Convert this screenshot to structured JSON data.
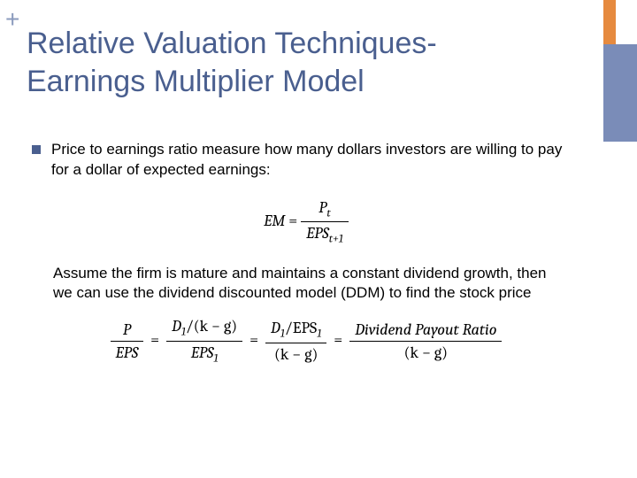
{
  "colors": {
    "plus": "#8b9bbd",
    "accent_orange": "#e68a3f",
    "accent_blue": "#7a8cb8",
    "title": "#4a5f8f",
    "bullet_marker": "#4a5f8f",
    "body_text": "#000000"
  },
  "plus_symbol": "+",
  "title_line1": "Relative Valuation Techniques-",
  "title_line2": "Earnings Multiplier Model",
  "bullet_text": "Price to earnings ratio measure how many dollars investors are willing to pay for a dollar of expected earnings:",
  "formula1": {
    "lhs": "EM",
    "eq": " = ",
    "numerator": "P",
    "num_sub": "t",
    "denominator": "EPS",
    "den_sub": "t+1"
  },
  "paragraph": "Assume the firm is mature and maintains a constant dividend growth, then we can use the dividend discounted model (DDM) to find the stock price",
  "formula2": {
    "lhs_num": "P",
    "lhs_den": "EPS",
    "mid1_num_a": "D",
    "mid1_num_a_sub": "1",
    "mid1_num_div": "/(k − g)",
    "mid1_den": "EPS",
    "mid1_den_sub": "1",
    "mid2_num_a": "D",
    "mid2_num_a_sub": "1",
    "mid2_num_div": "/EPS",
    "mid2_num_div_sub": "1",
    "mid2_den": "(k − g)",
    "rhs_num": "Dividend Payout Ratio",
    "rhs_den": "(k − g)",
    "eq": " = "
  }
}
